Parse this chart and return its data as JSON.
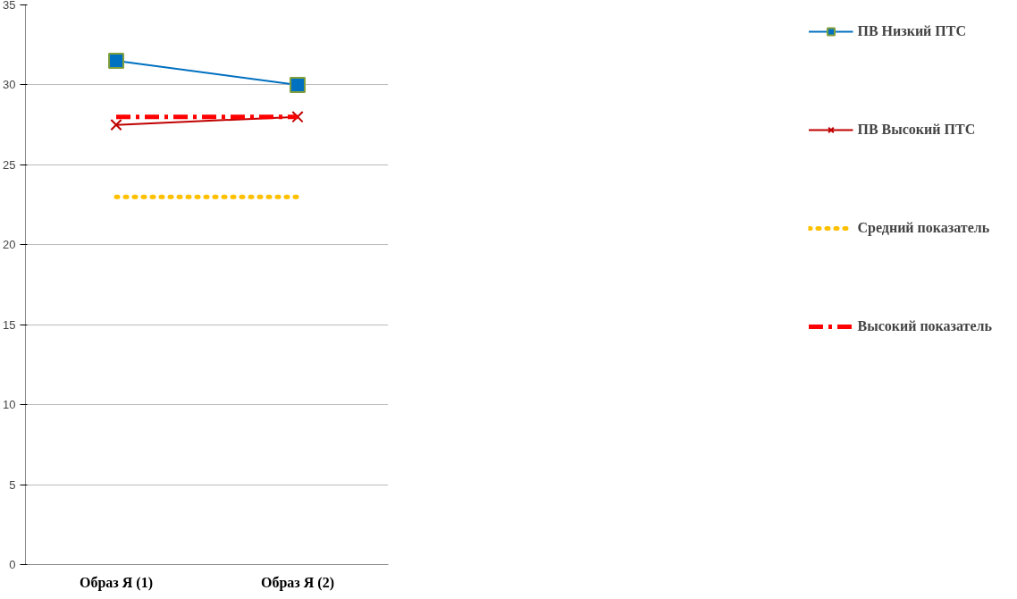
{
  "chart_data": {
    "type": "line",
    "categories": [
      "Образ Я (1)",
      "Образ Я (2)"
    ],
    "series": [
      {
        "name": "ПВ Низкий ПТС",
        "color": "#0070c0",
        "values": [
          31.5,
          30
        ],
        "marker": "square",
        "line_style": "solid"
      },
      {
        "name": "ПВ Высокий ПТС",
        "color": "#c00000",
        "values": [
          27.5,
          28
        ],
        "marker": "cross",
        "line_style": "solid"
      },
      {
        "name": "Средний показатель",
        "color": "#ffc000",
        "values": [
          23,
          23
        ],
        "marker": "none",
        "line_style": "dotted"
      },
      {
        "name": "Высокий показатель",
        "color": "#ff0000",
        "values": [
          28,
          28
        ],
        "marker": "none",
        "line_style": "dashed"
      }
    ],
    "ylim": [
      0,
      35
    ],
    "yticks": [
      0,
      5,
      10,
      15,
      20,
      25,
      30,
      35
    ],
    "grid": "y",
    "legend": "right"
  }
}
